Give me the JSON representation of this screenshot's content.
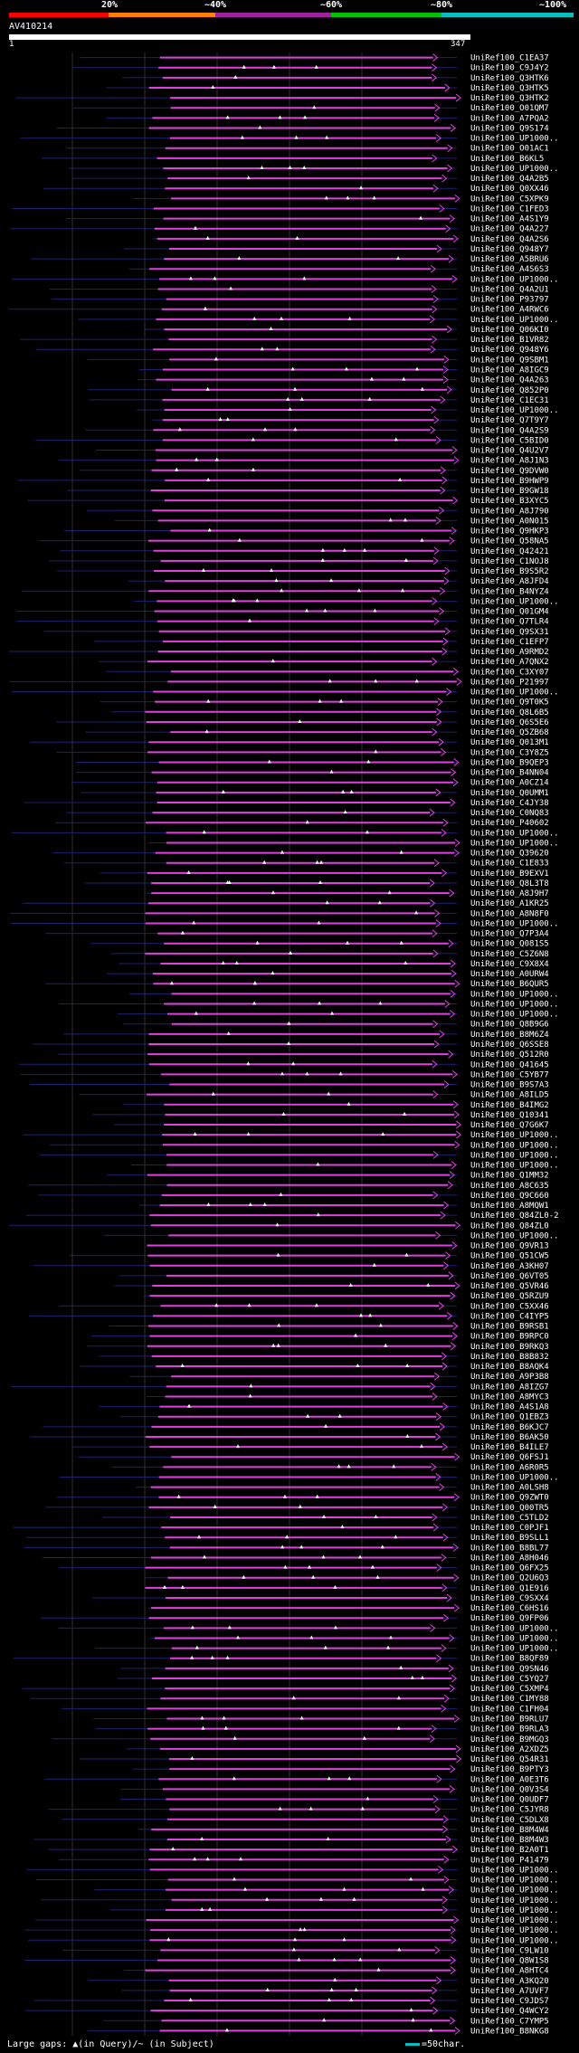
{
  "legend": {
    "labels": [
      "20%",
      "~40%",
      "~60%",
      "~80%",
      "~100%"
    ],
    "colors": [
      "#ff0000",
      "#ff8000",
      "#a020a0",
      "#00c000",
      "#00c0c0"
    ]
  },
  "query": {
    "title": "AV410214",
    "start": "1",
    "end": "347"
  },
  "colors": {
    "hit_line": "#e040e0",
    "gap": "#ffffff",
    "background": "#000000"
  },
  "hits": [
    "UniRef100_C1EA37",
    "UniRef100_C9J4Y2",
    "UniRef100_Q3HTK6",
    "UniRef100_Q3HTK5",
    "UniRef100_Q3HTK2",
    "UniRef100_O01QM7",
    "UniRef100_A7PQA2",
    "UniRef100_Q9S174",
    "UniRef100_UP1000..",
    "UniRef100_O01AC1",
    "UniRef100_B6KL5",
    "UniRef100_UP1000..",
    "UniRef100_Q4A2B5",
    "UniRef100_Q0XX46",
    "UniRef100_C5XPK9",
    "UniRef100_C1FED3",
    "UniRef100_A4S1Y9",
    "UniRef100_Q4A227",
    "UniRef100_Q4A2S6",
    "UniRef100_Q948Y7",
    "UniRef100_A5BRU6",
    "UniRef100_A4S6S3",
    "UniRef100_UP1000..",
    "UniRef100_Q4A2U1",
    "UniRef100_P93797",
    "UniRef100_A4RWC6",
    "UniRef100_UP1000..",
    "UniRef100_Q06KI0",
    "UniRef100_B1VR82",
    "UniRef100_Q948Y6",
    "UniRef100_Q9SBM1",
    "UniRef100_A8IGC9",
    "UniRef100_Q4A263",
    "UniRef100_Q852P0",
    "UniRef100_C1EC31",
    "UniRef100_UP1000..",
    "UniRef100_Q7T9Y7",
    "UniRef100_Q4A2S9",
    "UniRef100_C5BID0",
    "UniRef100_Q4U2V7",
    "UniRef100_A8J1N3",
    "UniRef100_Q9DVW0",
    "UniRef100_B9HWP9",
    "UniRef100_B9GW18",
    "UniRef100_B3XYC5",
    "UniRef100_A8J790",
    "UniRef100_A0N015",
    "UniRef100_Q9HKP3",
    "UniRef100_Q58NA5",
    "UniRef100_Q42421",
    "UniRef100_C1NOJ8",
    "UniRef100_B9S5R2",
    "UniRef100_A8JFD4",
    "UniRef100_B4NYZ4",
    "UniRef100_UP1000..",
    "UniRef100_Q01GM4",
    "UniRef100_Q7TLR4",
    "UniRef100_Q9SX31",
    "UniRef100_C1EFP7",
    "UniRef100_A9RMD2",
    "UniRef100_A7QNX2",
    "UniRef100_C3XY07",
    "UniRef100_P21997",
    "UniRef100_UP1000..",
    "UniRef100_Q9T0K5",
    "UniRef100_Q8L6B5",
    "UniRef100_Q6S5E6",
    "UniRef100_Q5ZB68",
    "UniRef100_Q013M1",
    "UniRef100_C3Y8Z5",
    "UniRef100_B9QEP3",
    "UniRef100_B4NN04",
    "UniRef100_A0CZ14",
    "UniRef100_Q0UMM1",
    "UniRef100_C4JY38",
    "UniRef100_C0NQ83",
    "UniRef100_P40602",
    "UniRef100_UP1000..",
    "UniRef100_UP1000..",
    "UniRef100_Q39620",
    "UniRef100_C1E833",
    "UniRef100_B9EXV1",
    "UniRef100_Q8L3T8",
    "UniRef100_A8J9H7",
    "UniRef100_A1KR25",
    "UniRef100_A8N8F0",
    "UniRef100_UP1000..",
    "UniRef100_Q7P3A4",
    "UniRef100_Q081S5",
    "UniRef100_C5Z6N8",
    "UniRef100_C9X8X4",
    "UniRef100_A0URW4",
    "UniRef100_B6QUR5",
    "UniRef100_UP1000..",
    "UniRef100_UP1000..",
    "UniRef100_UP1000..",
    "UniRef100_Q8B9G6",
    "UniRef100_B8M6Z4",
    "UniRef100_Q6SSE8",
    "UniRef100_Q512R0",
    "UniRef100_Q41645",
    "UniRef100_C5YB77",
    "UniRef100_B9S7A3",
    "UniRef100_A8ILD5",
    "UniRef100_B4IMG2",
    "UniRef100_Q10341",
    "UniRef100_Q7G6K7",
    "UniRef100_UP1000..",
    "UniRef100_UP1000..",
    "UniRef100_UP1000..",
    "UniRef100_UP1000..",
    "UniRef100_Q1MM32",
    "UniRef100_A8C635",
    "UniRef100_Q9C660",
    "UniRef100_A8MQW1",
    "UniRef100_Q84ZL0-2",
    "UniRef100_Q84ZL0",
    "UniRef100_UP1000..",
    "UniRef100_Q9VR13",
    "UniRef100_Q51CW5",
    "UniRef100_A3KH07",
    "UniRef100_Q6VT05",
    "UniRef100_Q5VR46",
    "UniRef100_Q5RZU9",
    "UniRef100_C5XX46",
    "UniRef100_C4IYP5",
    "UniRef100_B9RSB1",
    "UniRef100_B9RPC0",
    "UniRef100_B9RKQ3",
    "UniRef100_B8B832",
    "UniRef100_B8AQK4",
    "UniRef100_A9P3B8",
    "UniRef100_A8IZG7",
    "UniRef100_A8MYC3",
    "UniRef100_A4S1A8",
    "UniRef100_Q1EBZ3",
    "UniRef100_B6KJC7",
    "UniRef100_B6AK50",
    "UniRef100_B4ILE7",
    "UniRef100_Q6FSJ1",
    "UniRef100_A6R0R5",
    "UniRef100_UP1000..",
    "UniRef100_A0LSH8",
    "UniRef100_Q9ZWT0",
    "UniRef100_Q00TR5",
    "UniRef100_C5TLD2",
    "UniRef100_C0PJF1",
    "UniRef100_B9SLL1",
    "UniRef100_B8BL77",
    "UniRef100_A8H046",
    "UniRef100_Q6FX25",
    "UniRef100_Q2U6Q3",
    "UniRef100_Q1E916",
    "UniRef100_C9SXX4",
    "UniRef100_C6HS16",
    "UniRef100_Q9FP06",
    "UniRef100_UP1000..",
    "UniRef100_UP1000..",
    "UniRef100_UP1000..",
    "UniRef100_B8QF89",
    "UniRef100_Q9SN46",
    "UniRef100_C5YQ27",
    "UniRef100_C5XMP4",
    "UniRef100_C1MY88",
    "UniRef100_C1FH04",
    "UniRef100_B9RLU7",
    "UniRef100_B9RLA3",
    "UniRef100_B9MGQ3",
    "UniRef100_A2XDZ5",
    "UniRef100_Q54R31",
    "UniRef100_B9PTY3",
    "UniRef100_A0E3T6",
    "UniRef100_Q0V3S4",
    "UniRef100_Q0UDF7",
    "UniRef100_C5JYR8",
    "UniRef100_C5DLX8",
    "UniRef100_B8M4W4",
    "UniRef100_B8M4W3",
    "UniRef100_B2A0T1",
    "UniRef100_P41479",
    "UniRef100_UP1000..",
    "UniRef100_UP1000..",
    "UniRef100_UP1000..",
    "UniRef100_UP1000..",
    "UniRef100_UP1000..",
    "UniRef100_UP1000..",
    "UniRef100_UP1000..",
    "UniRef100_UP1000..",
    "UniRef100_C9LW10",
    "UniRef100_Q8W1S8",
    "UniRef100_A8HTC4",
    "UniRef100_A3KQ20",
    "UniRef100_A7UVF7",
    "UniRef100_C9JDS7",
    "UniRef100_Q4WCY2",
    "UniRef100_C7YMP5",
    "UniRef100_B8NKG8"
  ],
  "footer": {
    "large_gaps": "Large gaps: ▲(in Query)/~ (in Subject)",
    "scale": "=50char."
  }
}
